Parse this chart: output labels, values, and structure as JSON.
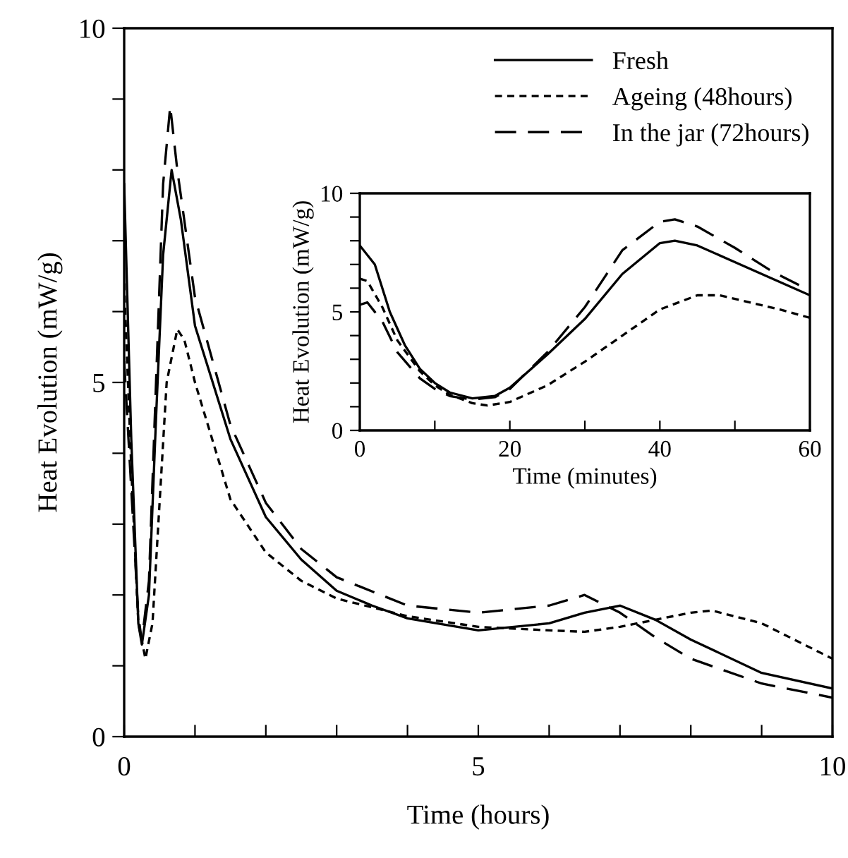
{
  "chart_data": [
    {
      "type": "line",
      "xlabel": "Time (hours)",
      "ylabel": "Heat Evolution (mW/g)",
      "xlim": [
        0,
        10
      ],
      "ylim": [
        0,
        10
      ],
      "xticks": [
        0,
        {
          "value": 1,
          "label": null
        },
        {
          "value": 2,
          "label": null
        },
        {
          "value": 3,
          "label": null
        },
        {
          "value": 4,
          "label": null
        },
        5,
        {
          "value": 6,
          "label": null
        },
        {
          "value": 7,
          "label": null
        },
        {
          "value": 8,
          "label": null
        },
        {
          "value": 9,
          "label": null
        },
        10
      ],
      "yticks": [
        0,
        {
          "value": 1,
          "label": null
        },
        {
          "value": 2,
          "label": null
        },
        {
          "value": 3,
          "label": null
        },
        {
          "value": 4,
          "label": null
        },
        5,
        {
          "value": 6,
          "label": null
        },
        {
          "value": 7,
          "label": null
        },
        {
          "value": 8,
          "label": null
        },
        {
          "value": 9,
          "label": null
        },
        10
      ],
      "legend": "top right",
      "grid": false,
      "marker": "none",
      "series": [
        {
          "name": "Fresh",
          "color": "#000000",
          "line_style": "solid",
          "x": [
            0,
            0.1,
            0.2,
            0.25,
            0.35,
            0.45,
            0.55,
            0.67,
            0.8,
            1,
            1.5,
            2,
            2.5,
            3,
            3.5,
            4,
            5,
            6,
            6.5,
            7,
            7.5,
            8,
            9,
            10
          ],
          "values": [
            7.8,
            4.2,
            1.6,
            1.3,
            2.0,
            4.5,
            6.8,
            8.0,
            7.3,
            5.8,
            4.2,
            3.1,
            2.5,
            2.06,
            1.85,
            1.67,
            1.5,
            1.6,
            1.75,
            1.85,
            1.65,
            1.37,
            0.9,
            0.68
          ]
        },
        {
          "name": "Ageing (48hours)",
          "color": "#000000",
          "line_style": "dotted",
          "x": [
            0,
            0.1,
            0.2,
            0.3,
            0.4,
            0.5,
            0.6,
            0.75,
            0.85,
            1,
            1.5,
            2,
            2.5,
            3,
            4,
            5,
            6,
            6.5,
            7,
            7.5,
            8,
            8.3,
            9,
            9.5,
            10
          ],
          "values": [
            6.4,
            3.8,
            1.6,
            1.1,
            1.6,
            3.3,
            5.0,
            5.75,
            5.6,
            5.0,
            3.35,
            2.6,
            2.2,
            1.95,
            1.7,
            1.55,
            1.5,
            1.48,
            1.55,
            1.65,
            1.75,
            1.78,
            1.6,
            1.35,
            1.1
          ]
        },
        {
          "name": "In the jar (72hours)",
          "color": "#000000",
          "line_style": "dashed",
          "x": [
            0,
            0.1,
            0.2,
            0.25,
            0.35,
            0.45,
            0.55,
            0.65,
            0.75,
            1,
            1.5,
            2,
            2.5,
            3,
            4,
            5,
            6,
            6.5,
            7,
            7.5,
            8,
            9,
            10
          ],
          "values": [
            5.3,
            3.5,
            1.7,
            1.35,
            2.2,
            5.0,
            7.8,
            8.9,
            8.0,
            6.2,
            4.4,
            3.3,
            2.65,
            2.25,
            1.85,
            1.75,
            1.85,
            2.0,
            1.75,
            1.4,
            1.1,
            0.75,
            0.55
          ]
        }
      ]
    },
    {
      "type": "line",
      "xlabel": "Time (minutes)",
      "ylabel": "Heat Evolution (mW/g)",
      "xlim": [
        0,
        60
      ],
      "ylim": [
        0,
        10
      ],
      "xticks": [
        0,
        {
          "value": 10,
          "label": null
        },
        20,
        {
          "value": 30,
          "label": null
        },
        40,
        {
          "value": 50,
          "label": null
        },
        60
      ],
      "yticks": [
        0,
        {
          "value": 1,
          "label": null
        },
        {
          "value": 2,
          "label": null
        },
        {
          "value": 3,
          "label": null
        },
        {
          "value": 4,
          "label": null
        },
        5,
        {
          "value": 6,
          "label": null
        },
        {
          "value": 7,
          "label": null
        },
        {
          "value": 8,
          "label": null
        },
        {
          "value": 9,
          "label": null
        },
        10
      ],
      "grid": false,
      "marker": "none",
      "series": [
        {
          "color": "#000000",
          "line_style": "solid",
          "x": [
            0,
            2,
            4,
            6,
            8,
            10,
            12,
            15,
            18,
            20,
            25,
            30,
            35,
            40,
            42,
            45,
            50,
            55,
            60
          ],
          "values": [
            7.8,
            7.0,
            5.0,
            3.6,
            2.6,
            2.0,
            1.6,
            1.35,
            1.45,
            1.8,
            3.2,
            4.7,
            6.6,
            7.9,
            8.0,
            7.8,
            7.1,
            6.4,
            5.7
          ]
        },
        {
          "color": "#000000",
          "line_style": "dotted",
          "x": [
            0,
            1,
            3,
            5,
            8,
            10,
            12,
            15,
            17,
            20,
            25,
            30,
            35,
            40,
            45,
            48,
            52,
            56,
            60
          ],
          "values": [
            6.4,
            6.3,
            5.2,
            3.8,
            2.5,
            1.9,
            1.5,
            1.15,
            1.05,
            1.2,
            1.9,
            2.9,
            4.0,
            5.1,
            5.7,
            5.7,
            5.4,
            5.1,
            4.75
          ]
        },
        {
          "color": "#000000",
          "line_style": "dashed",
          "x": [
            0,
            1,
            3,
            5,
            8,
            10,
            12,
            15,
            18,
            20,
            25,
            30,
            35,
            40,
            42,
            45,
            50,
            55,
            60
          ],
          "values": [
            5.3,
            5.4,
            4.6,
            3.3,
            2.2,
            1.75,
            1.45,
            1.3,
            1.4,
            1.75,
            3.3,
            5.2,
            7.6,
            8.8,
            8.9,
            8.6,
            7.7,
            6.7,
            5.9
          ]
        }
      ]
    }
  ]
}
